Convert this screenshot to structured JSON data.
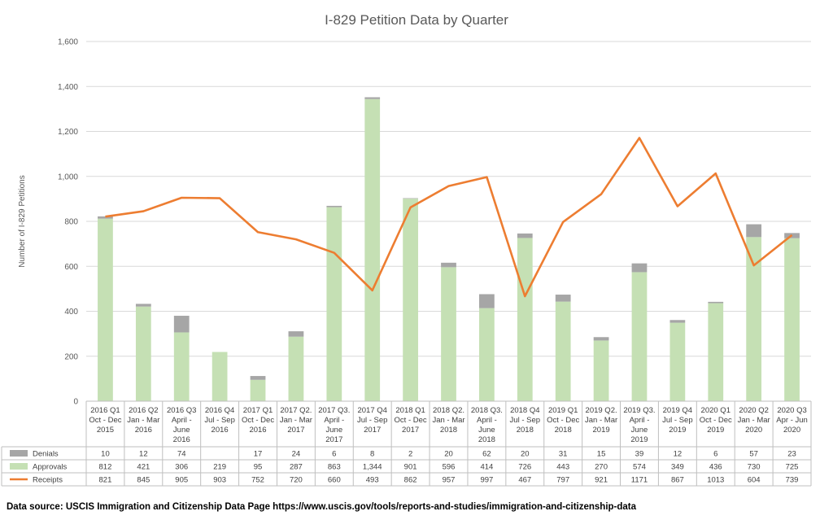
{
  "chart_data": {
    "type": "bar",
    "title": "I-829 Petition Data by Quarter",
    "ylabel": "Number of I-829 Petitions",
    "ylim": [
      0,
      1600
    ],
    "yticks": [
      "0",
      "200",
      "400",
      "600",
      "800",
      "1,000",
      "1,200",
      "1,400",
      "1,600"
    ],
    "stacked": true,
    "grid": true,
    "legend": "table-left",
    "categories": [
      [
        "2016 Q1",
        "Oct - Dec",
        "2015"
      ],
      [
        "2016 Q2",
        "Jan - Mar",
        "2016"
      ],
      [
        "2016 Q3",
        "April -",
        "June",
        "2016"
      ],
      [
        "2016 Q4",
        "Jul - Sep",
        "2016"
      ],
      [
        "2017 Q1",
        "Oct - Dec",
        "2016"
      ],
      [
        "2017 Q2.",
        "Jan - Mar",
        "2017"
      ],
      [
        "2017 Q3.",
        "April -",
        "June",
        "2017"
      ],
      [
        "2017 Q4",
        "Jul - Sep",
        "2017"
      ],
      [
        "2018 Q1",
        "Oct - Dec",
        "2017"
      ],
      [
        "2018 Q2.",
        "Jan - Mar",
        "2018"
      ],
      [
        "2018 Q3.",
        "April -",
        "June",
        "2018"
      ],
      [
        "2018 Q4",
        "Jul - Sep",
        "2018"
      ],
      [
        "2019  Q1",
        "Oct - Dec",
        "2018"
      ],
      [
        "2019 Q2.",
        "Jan - Mar",
        "2019"
      ],
      [
        "2019 Q3.",
        "April -",
        "June",
        "2019"
      ],
      [
        "2019 Q4",
        "Jul - Sep",
        "2019"
      ],
      [
        "2020  Q1",
        "Oct - Dec",
        "2019"
      ],
      [
        "2020 Q2",
        "Jan - Mar",
        "2020"
      ],
      [
        "2020 Q3",
        "Apr - Jun",
        "2020"
      ]
    ],
    "series": [
      {
        "name": "Denials",
        "kind": "bar",
        "color": "#a6a6a6",
        "values": [
          10,
          12,
          74,
          null,
          17,
          24,
          6,
          8,
          2,
          20,
          62,
          20,
          31,
          15,
          39,
          12,
          6,
          57,
          23
        ],
        "labels": [
          "10",
          "12",
          "74",
          "",
          "17",
          "24",
          "6",
          "8",
          "2",
          "20",
          "62",
          "20",
          "31",
          "15",
          "39",
          "12",
          "6",
          "57",
          "23"
        ]
      },
      {
        "name": "Approvals",
        "kind": "bar",
        "color": "#c5e0b4",
        "values": [
          812,
          421,
          306,
          219,
          95,
          287,
          863,
          1344,
          901,
          596,
          414,
          726,
          443,
          270,
          574,
          349,
          436,
          730,
          725
        ],
        "labels": [
          "812",
          "421",
          "306",
          "219",
          "95",
          "287",
          "863",
          "1,344",
          "901",
          "596",
          "414",
          "726",
          "443",
          "270",
          "574",
          "349",
          "436",
          "730",
          "725"
        ]
      },
      {
        "name": "Receipts",
        "kind": "line",
        "color": "#ed7d31",
        "values": [
          821,
          845,
          905,
          903,
          752,
          720,
          660,
          493,
          862,
          957,
          997,
          467,
          797,
          921,
          1171,
          867,
          1013,
          604,
          739
        ],
        "labels": [
          "821",
          "845",
          "905",
          "903",
          "752",
          "720",
          "660",
          "493",
          "862",
          "957",
          "997",
          "467",
          "797",
          "921",
          "1171",
          "867",
          "1013",
          "604",
          "739"
        ]
      }
    ]
  },
  "source": "Data source: USCIS Immigration and Citizenship Data Page https://www.uscis.gov/tools/reports-and-studies/immigration-and-citizenship-data"
}
